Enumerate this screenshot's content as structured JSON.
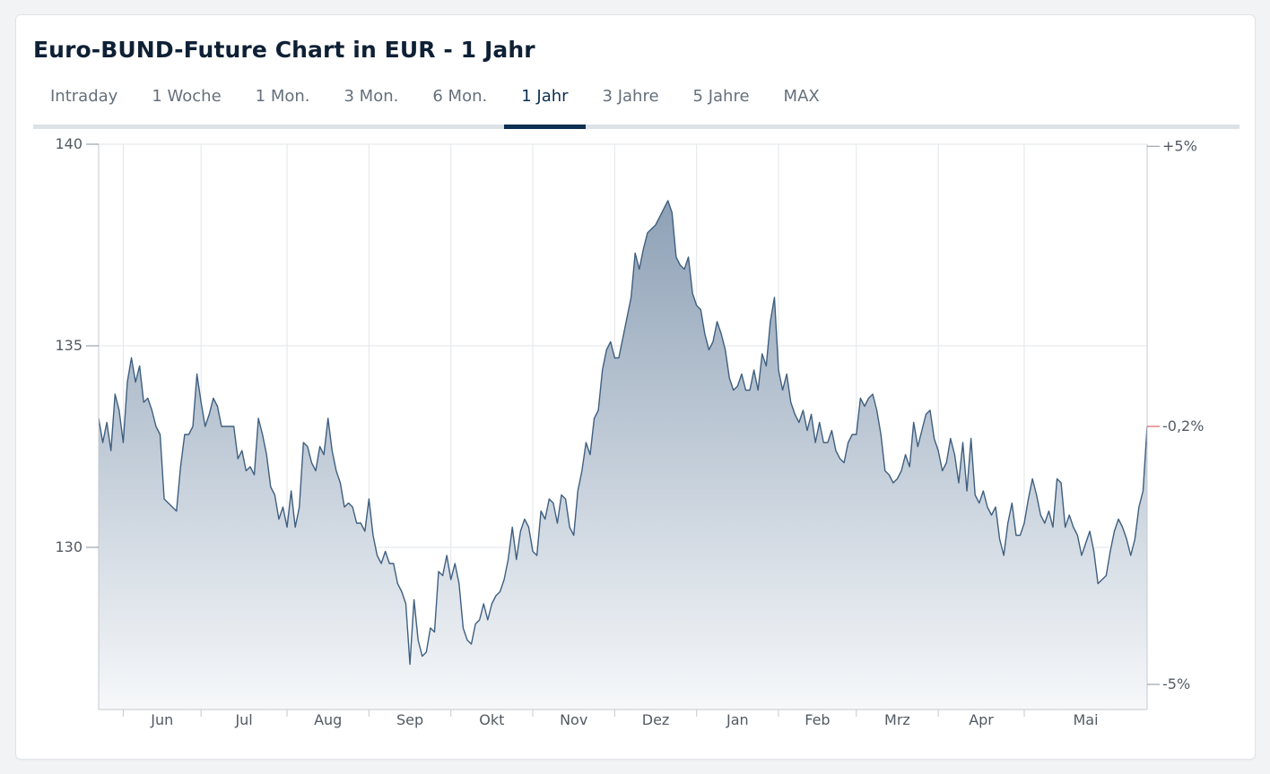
{
  "header": {
    "title": "Euro-BUND-Future Chart in EUR - 1 Jahr",
    "tabs": [
      {
        "label": "Intraday",
        "active": false
      },
      {
        "label": "1 Woche",
        "active": false
      },
      {
        "label": "1 Mon.",
        "active": false
      },
      {
        "label": "3 Mon.",
        "active": false
      },
      {
        "label": "6 Mon.",
        "active": false
      },
      {
        "label": "1 Jahr",
        "active": true
      },
      {
        "label": "3 Jahre",
        "active": false
      },
      {
        "label": "5 Jahre",
        "active": false
      },
      {
        "label": "MAX",
        "active": false
      }
    ]
  },
  "chart_data": {
    "type": "area",
    "title": "Euro-BUND-Future Chart in EUR - 1 Jahr",
    "ylim": [
      126,
      140
    ],
    "yticks": [
      {
        "value": 140,
        "label": "140"
      },
      {
        "value": 135,
        "label": "135"
      },
      {
        "value": 130,
        "label": "130"
      }
    ],
    "right_axis": {
      "ticks": [
        {
          "value": 139.95,
          "label": "+5%",
          "highlight": false
        },
        {
          "value": 133.0,
          "label": "-0,2%",
          "highlight": true
        },
        {
          "value": 126.6,
          "label": "-5%",
          "highlight": false
        }
      ]
    },
    "months": [
      {
        "label": "Jun",
        "index": 6
      },
      {
        "label": "Jul",
        "index": 25
      },
      {
        "label": "Aug",
        "index": 46
      },
      {
        "label": "Sep",
        "index": 66
      },
      {
        "label": "Okt",
        "index": 86
      },
      {
        "label": "Nov",
        "index": 106
      },
      {
        "label": "Dez",
        "index": 126
      },
      {
        "label": "Jan",
        "index": 146
      },
      {
        "label": "Feb",
        "index": 166
      },
      {
        "label": "Mrz",
        "index": 185
      },
      {
        "label": "Apr",
        "index": 205
      },
      {
        "label": "Mai",
        "index": 226
      }
    ],
    "grid": true,
    "colors": {
      "line": "#3f5f80",
      "fill_top": "#8ea1b6",
      "fill_bottom": "#f6f8fa",
      "highlight": "#e04646"
    },
    "values": [
      133.2,
      132.6,
      133.1,
      132.4,
      133.8,
      133.4,
      132.6,
      134.1,
      134.7,
      134.1,
      134.5,
      133.6,
      133.7,
      133.4,
      133.0,
      132.8,
      131.2,
      131.1,
      131.0,
      130.9,
      132.0,
      132.8,
      132.8,
      133.0,
      134.3,
      133.6,
      133.0,
      133.3,
      133.7,
      133.5,
      133.0,
      133.0,
      133.0,
      133.0,
      132.2,
      132.4,
      131.9,
      132.0,
      131.8,
      133.2,
      132.8,
      132.3,
      131.5,
      131.3,
      130.7,
      131.0,
      130.5,
      131.4,
      130.5,
      131.0,
      132.6,
      132.5,
      132.1,
      131.9,
      132.5,
      132.3,
      133.2,
      132.4,
      131.9,
      131.6,
      131.0,
      131.1,
      131.0,
      130.6,
      130.6,
      130.4,
      131.2,
      130.3,
      129.8,
      129.6,
      129.9,
      129.6,
      129.6,
      129.1,
      128.9,
      128.6,
      127.1,
      128.7,
      127.7,
      127.3,
      127.4,
      128.0,
      127.9,
      129.4,
      129.3,
      129.8,
      129.2,
      129.6,
      129.1,
      128.0,
      127.7,
      127.6,
      128.1,
      128.2,
      128.6,
      128.2,
      128.6,
      128.8,
      128.9,
      129.2,
      129.7,
      130.5,
      129.7,
      130.4,
      130.7,
      130.5,
      129.9,
      129.8,
      130.9,
      130.7,
      131.2,
      131.1,
      130.6,
      131.3,
      131.2,
      130.5,
      130.3,
      131.4,
      131.9,
      132.6,
      132.3,
      133.2,
      133.4,
      134.4,
      134.9,
      135.1,
      134.7,
      134.7,
      135.2,
      135.7,
      136.2,
      137.3,
      136.9,
      137.4,
      137.8,
      137.9,
      138.0,
      138.2,
      138.4,
      138.6,
      138.3,
      137.2,
      137.0,
      136.9,
      137.2,
      136.3,
      136.0,
      135.9,
      135.3,
      134.9,
      135.1,
      135.6,
      135.3,
      134.9,
      134.2,
      133.9,
      134.0,
      134.3,
      133.9,
      133.9,
      134.4,
      133.9,
      134.8,
      134.5,
      135.6,
      136.2,
      134.4,
      133.9,
      134.3,
      133.6,
      133.3,
      133.1,
      133.4,
      132.9,
      133.3,
      132.6,
      133.1,
      132.6,
      132.6,
      132.9,
      132.4,
      132.2,
      132.1,
      132.6,
      132.8,
      132.8,
      133.7,
      133.5,
      133.7,
      133.8,
      133.4,
      132.8,
      131.9,
      131.8,
      131.6,
      131.7,
      131.9,
      132.3,
      132.0,
      133.1,
      132.5,
      132.9,
      133.3,
      133.4,
      132.7,
      132.4,
      131.9,
      132.1,
      132.7,
      132.3,
      131.6,
      132.6,
      131.4,
      132.7,
      131.3,
      131.1,
      131.4,
      131.0,
      130.8,
      131.0,
      130.2,
      129.8,
      130.6,
      131.1,
      130.3,
      130.3,
      130.6,
      131.2,
      131.7,
      131.3,
      130.8,
      130.6,
      130.9,
      130.5,
      131.7,
      131.6,
      130.5,
      130.8,
      130.5,
      130.3,
      129.8,
      130.1,
      130.4,
      129.9,
      129.1,
      129.2,
      129.3,
      129.9,
      130.4,
      130.7,
      130.5,
      130.2,
      129.8,
      130.2,
      131.0,
      131.4,
      133.0
    ]
  }
}
